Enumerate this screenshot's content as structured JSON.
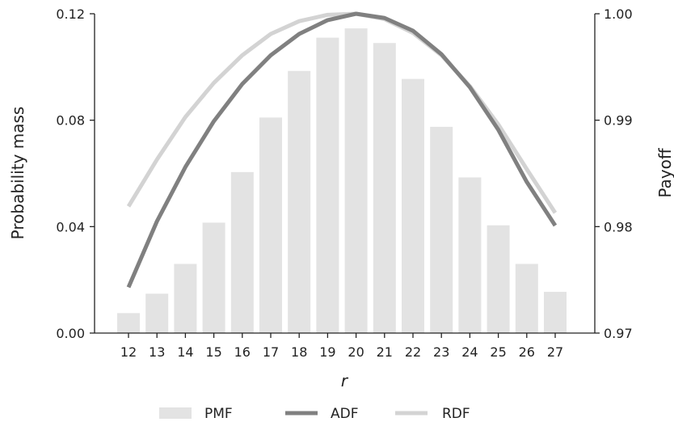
{
  "chart_data": {
    "type": "bar",
    "categories": [
      "12",
      "13",
      "14",
      "15",
      "16",
      "17",
      "18",
      "19",
      "20",
      "21",
      "22",
      "23",
      "24",
      "25",
      "26",
      "27"
    ],
    "xlabel": "r",
    "ylabel": "Probability mass",
    "y2label": "Payoff",
    "ylim": [
      0.0,
      0.12
    ],
    "y2lim": [
      0.97,
      1.0
    ],
    "yticks": [
      "0.00",
      "0.04",
      "0.08",
      "0.12"
    ],
    "y2ticks": [
      "0.97",
      "0.98",
      "0.99",
      "1.00"
    ],
    "grid": false,
    "legend_position": "bottom",
    "series": [
      {
        "name": "PMF",
        "kind": "bar",
        "axis": "left",
        "color": "#e3e3e3",
        "values": [
          0.0075,
          0.0148,
          0.026,
          0.0415,
          0.0605,
          0.081,
          0.0985,
          0.111,
          0.1145,
          0.109,
          0.0955,
          0.0775,
          0.0585,
          0.0405,
          0.026,
          0.0155
        ]
      },
      {
        "name": "ADF",
        "kind": "line",
        "axis": "right",
        "color": "#808080",
        "values": [
          0.9743,
          0.9805,
          0.9856,
          0.9899,
          0.9934,
          0.9961,
          0.9981,
          0.9994,
          1.0,
          0.9996,
          0.9984,
          0.9962,
          0.9931,
          0.9891,
          0.9842,
          0.9801
        ]
      },
      {
        "name": "RDF",
        "kind": "line",
        "axis": "right",
        "color": "#d3d3d3",
        "values": [
          0.9819,
          0.9863,
          0.9903,
          0.9935,
          0.9961,
          0.9981,
          0.9993,
          0.9999,
          1.0,
          0.9995,
          0.9982,
          0.9961,
          0.9932,
          0.9896,
          0.9854,
          0.9813
        ]
      }
    ]
  }
}
